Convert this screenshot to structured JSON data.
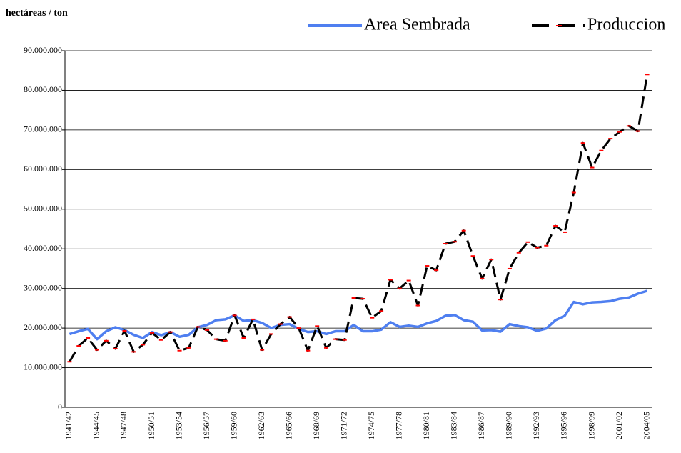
{
  "chart_data": {
    "type": "line",
    "y_label": "hectáreas / ton",
    "categories": [
      "1941/42",
      null,
      null,
      "1944/45",
      null,
      null,
      "1947/48",
      null,
      null,
      "1950/51",
      null,
      null,
      "1953/54",
      null,
      null,
      "1956/57",
      null,
      null,
      "1959/60",
      null,
      null,
      "1962/63",
      null,
      null,
      "1965/66",
      null,
      null,
      "1968/69",
      null,
      null,
      "1971/72",
      null,
      null,
      "1974/75",
      null,
      null,
      "1977/78",
      null,
      null,
      "1980/81",
      null,
      null,
      "1983/84",
      null,
      null,
      "1986/87",
      null,
      null,
      "1989/90",
      null,
      null,
      "1992/93",
      null,
      null,
      "1995/96",
      null,
      null,
      "1998/99",
      null,
      null,
      "2001/02",
      null,
      null,
      "2004/05"
    ],
    "series": [
      {
        "name": "Area Sembrada",
        "color": "#4f7ff0",
        "values": [
          18500000,
          19200000,
          19800000,
          17200000,
          19200000,
          20200000,
          19500000,
          18300000,
          17500000,
          19000000,
          18200000,
          19000000,
          17800000,
          18300000,
          20200000,
          20800000,
          22000000,
          22200000,
          23200000,
          21800000,
          22000000,
          21300000,
          20000000,
          20800000,
          21000000,
          19800000,
          19000000,
          19200000,
          18500000,
          19200000,
          19200000,
          20800000,
          19200000,
          19200000,
          19600000,
          21500000,
          20300000,
          20600000,
          20300000,
          21200000,
          21800000,
          23100000,
          23300000,
          22000000,
          21600000,
          19400000,
          19500000,
          19100000,
          21000000,
          20500000,
          20200000,
          19300000,
          19900000,
          22000000,
          23100000,
          26600000,
          26000000,
          26500000,
          26600000,
          26800000,
          27400000,
          27700000,
          28700000,
          29400000
        ]
      },
      {
        "name": "Produccion",
        "color": "#000000",
        "marker_color": "#ff0000",
        "values": [
          11500000,
          15500000,
          17500000,
          14500000,
          16800000,
          14800000,
          19300000,
          14000000,
          15800000,
          18800000,
          17000000,
          19000000,
          14300000,
          15000000,
          20300000,
          19500000,
          17200000,
          16800000,
          23200000,
          17500000,
          22200000,
          14500000,
          18500000,
          21000000,
          22800000,
          20000000,
          14300000,
          20500000,
          15000000,
          17200000,
          17000000,
          27600000,
          27400000,
          22600000,
          24300000,
          32200000,
          30000000,
          32000000,
          25700000,
          35700000,
          34600000,
          41300000,
          41800000,
          44600000,
          38200000,
          32500000,
          37300000,
          27200000,
          35000000,
          39000000,
          41700000,
          40300000,
          40800000,
          45800000,
          44200000,
          54200000,
          66700000,
          60500000,
          64800000,
          67800000,
          69500000,
          71000000,
          69700000,
          84000000
        ]
      }
    ],
    "ylim": [
      0,
      90000000
    ],
    "yticks": [
      0,
      {
        "value": 10000000,
        "label": "10.000.000"
      },
      {
        "value": 20000000,
        "label": "20.000.000"
      },
      {
        "value": 30000000,
        "label": "30.000.000"
      },
      {
        "value": 40000000,
        "label": "40.000.000"
      },
      {
        "value": 50000000,
        "label": "50.000.000"
      },
      {
        "value": 60000000,
        "label": "60.000.000"
      },
      {
        "value": 70000000,
        "label": "70.000.000"
      },
      {
        "value": 80000000,
        "label": "80.000.000"
      },
      {
        "value": 90000000,
        "label": "90.000.000"
      }
    ],
    "grid": true
  }
}
